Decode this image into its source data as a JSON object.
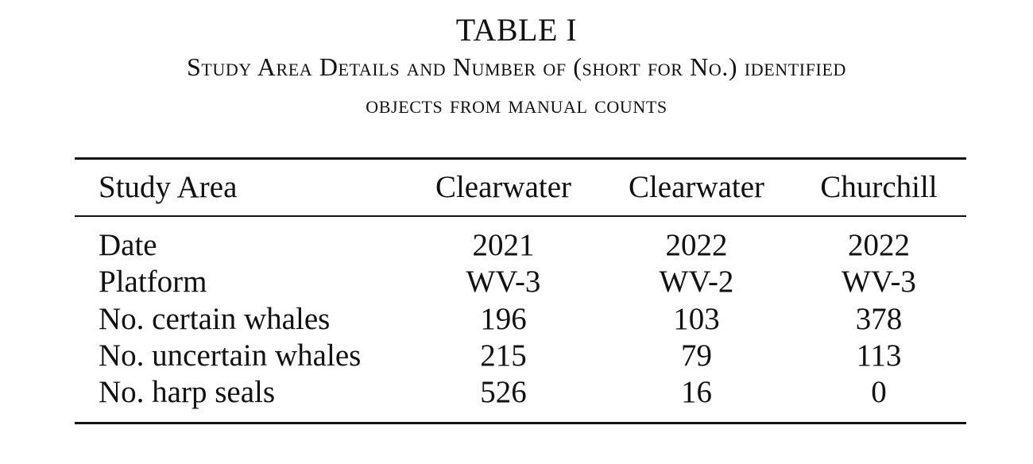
{
  "caption": {
    "table_label": "TABLE I",
    "title_line_1": "Study Area Details and Number of (short for No.) identified",
    "title_line_2": "objects from manual counts"
  },
  "table": {
    "headers": [
      "Study Area",
      "Clearwater",
      "Clearwater",
      "Churchill"
    ],
    "rows": [
      {
        "label": "Date",
        "values": [
          "2021",
          "2022",
          "2022"
        ]
      },
      {
        "label": "Platform",
        "values": [
          "WV-3",
          "WV-2",
          "WV-3"
        ]
      },
      {
        "label": "No. certain whales",
        "values": [
          "196",
          "103",
          "378"
        ]
      },
      {
        "label": "No. uncertain whales",
        "values": [
          "215",
          "79",
          "113"
        ]
      },
      {
        "label": "No. harp seals",
        "values": [
          "526",
          "16",
          "0"
        ]
      }
    ]
  }
}
